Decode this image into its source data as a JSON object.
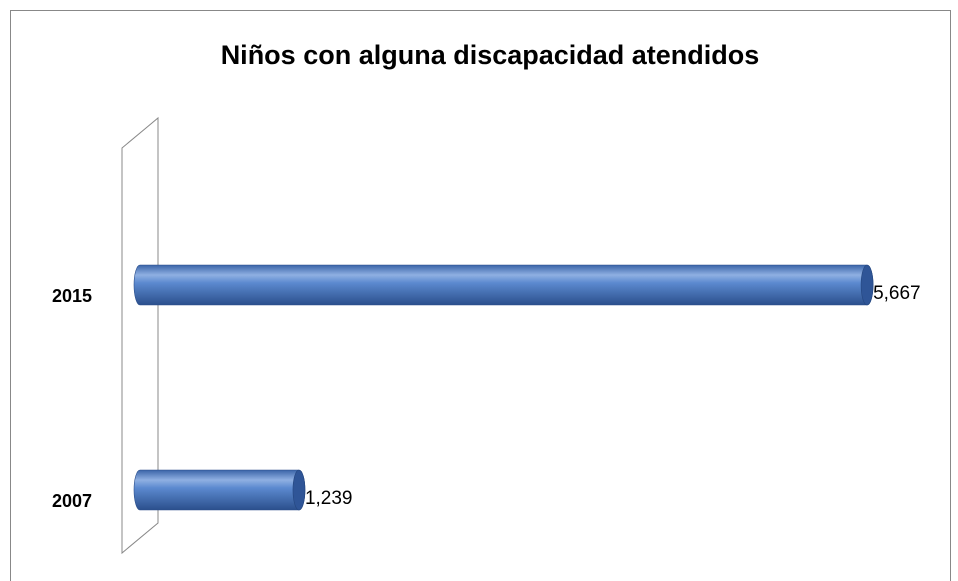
{
  "chart_data": {
    "type": "bar",
    "orientation": "horizontal",
    "title": "Niños con alguna discapacidad atendidos",
    "categories": [
      "2007",
      "2015"
    ],
    "values": [
      1239,
      5667
    ],
    "value_labels": [
      "1,239",
      "5,667"
    ],
    "color": "#4f7fc4"
  }
}
